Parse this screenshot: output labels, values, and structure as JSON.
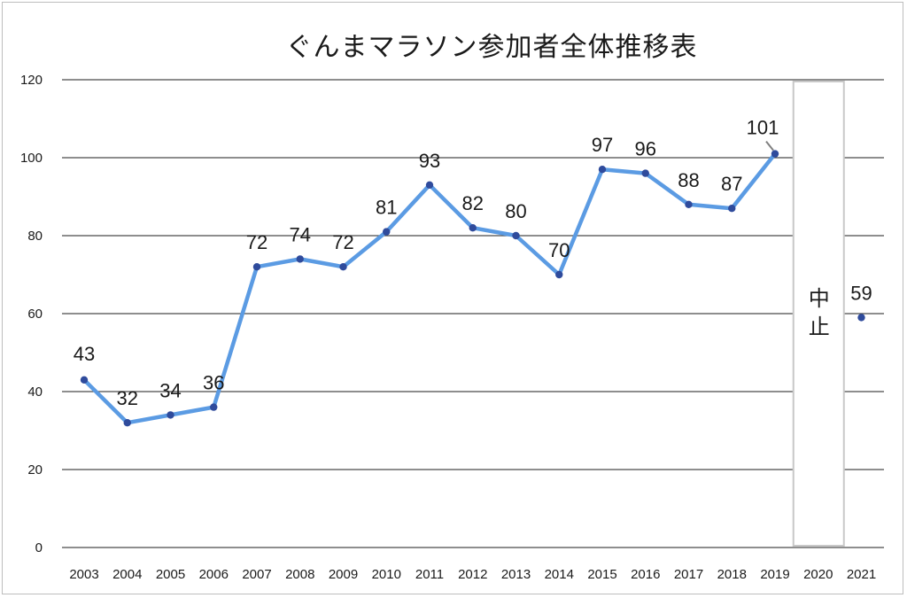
{
  "chart_data": {
    "type": "line",
    "title": "ぐんまマラソン参加者全体推移表",
    "categories": [
      "2003",
      "2004",
      "2005",
      "2006",
      "2007",
      "2008",
      "2009",
      "2010",
      "2011",
      "2012",
      "2013",
      "2014",
      "2015",
      "2016",
      "2017",
      "2018",
      "2019",
      "2020",
      "2021"
    ],
    "series": [
      {
        "values": [
          43,
          32,
          34,
          36,
          72,
          74,
          72,
          81,
          93,
          82,
          80,
          70,
          97,
          96,
          88,
          87,
          101,
          null,
          59
        ]
      }
    ],
    "ylim": [
      0,
      120
    ],
    "yticks": [
      "0",
      "20",
      "40",
      "60",
      "80",
      "100",
      "120"
    ],
    "grid": true,
    "annotation": {
      "category": "2020",
      "text": "中止"
    },
    "colors": {
      "line": "#5b9be3",
      "marker": "#2f4b9c",
      "grid": "#4a4a4a",
      "notice_border": "#c8c8c8"
    }
  }
}
